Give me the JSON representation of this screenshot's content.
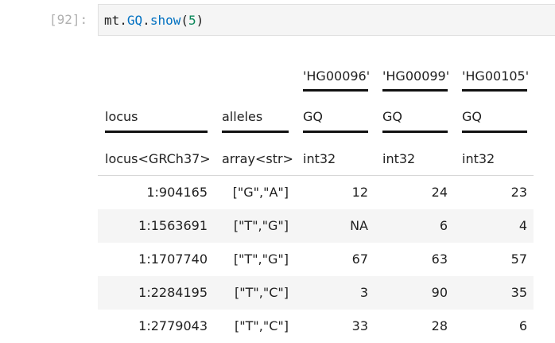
{
  "cell": {
    "prompt": "[92]:",
    "code": {
      "obj": "mt",
      "dot1": ".",
      "field": "GQ",
      "dot2": ".",
      "method": "show",
      "open": "(",
      "arg": "5",
      "close": ")"
    }
  },
  "table": {
    "sample_headers": [
      "'HG00096'",
      "'HG00099'",
      "'HG00105'"
    ],
    "field_headers": [
      "locus",
      "alleles",
      "GQ",
      "GQ",
      "GQ"
    ],
    "type_headers": [
      "locus<GRCh37>",
      "array<str>",
      "int32",
      "int32",
      "int32"
    ],
    "rows": [
      [
        "1:904165",
        "[\"G\",\"A\"]",
        "12",
        "24",
        "23"
      ],
      [
        "1:1563691",
        "[\"T\",\"G\"]",
        "NA",
        "6",
        "4"
      ],
      [
        "1:1707740",
        "[\"T\",\"G\"]",
        "67",
        "63",
        "57"
      ],
      [
        "1:2284195",
        "[\"T\",\"C\"]",
        "3",
        "90",
        "35"
      ],
      [
        "1:2779043",
        "[\"T\",\"C\"]",
        "33",
        "28",
        "6"
      ]
    ]
  }
}
